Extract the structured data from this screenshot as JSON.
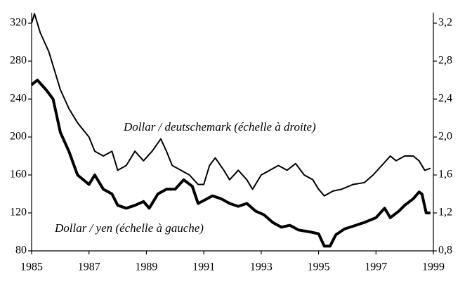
{
  "chart_data": {
    "type": "line",
    "annotations": [
      "Dollar / deutschemark (échelle à droite)",
      "Dollar / yen (échelle à gauche)"
    ],
    "xlim": [
      1985,
      1999
    ],
    "xticks": [
      1985,
      1987,
      1989,
      1991,
      1993,
      1995,
      1997,
      1999
    ],
    "ylim": [
      80,
      340
    ],
    "yticks": [
      80,
      120,
      160,
      200,
      240,
      280,
      320
    ],
    "y2lim": [
      0.8,
      3.4
    ],
    "y2ticks": [
      {
        "value": 0.8,
        "label": "0,8"
      },
      {
        "value": 1.2,
        "label": "1,2"
      },
      {
        "value": 1.6,
        "label": "1,6"
      },
      {
        "value": 2.0,
        "label": "2,0"
      },
      {
        "value": 2.4,
        "label": "2,4"
      },
      {
        "value": 2.8,
        "label": "2,8"
      },
      {
        "value": 3.2,
        "label": "3,2"
      }
    ],
    "series": [
      {
        "name": "Dollar / yen",
        "color": "#000000",
        "x": [
          1985.0,
          1985.2,
          1985.5,
          1985.75,
          1986.0,
          1986.3,
          1986.6,
          1987.0,
          1987.2,
          1987.5,
          1987.8,
          1988.0,
          1988.3,
          1988.6,
          1988.9,
          1989.1,
          1989.4,
          1989.7,
          1990.0,
          1990.3,
          1990.6,
          1990.8,
          1991.0,
          1991.3,
          1991.6,
          1991.9,
          1992.2,
          1992.5,
          1992.8,
          1993.1,
          1993.4,
          1993.7,
          1994.0,
          1994.3,
          1994.7,
          1995.0,
          1995.2,
          1995.4,
          1995.6,
          1995.9,
          1996.3,
          1996.6,
          1997.0,
          1997.3,
          1997.5,
          1997.8,
          1998.0,
          1998.3,
          1998.5,
          1998.6,
          1998.75,
          1998.9
        ],
        "values": [
          255,
          260,
          250,
          240,
          205,
          185,
          160,
          150,
          160,
          145,
          140,
          128,
          125,
          128,
          132,
          125,
          140,
          145,
          145,
          155,
          148,
          130,
          133,
          138,
          135,
          130,
          127,
          130,
          122,
          118,
          110,
          105,
          107,
          102,
          100,
          98,
          85,
          85,
          97,
          103,
          107,
          110,
          115,
          125,
          115,
          122,
          128,
          135,
          142,
          140,
          120,
          120
        ]
      },
      {
        "name": "Dollar / deutschemark",
        "color": "#000000",
        "axis": "y2",
        "x": [
          1985.0,
          1985.1,
          1985.3,
          1985.6,
          1985.8,
          1986.0,
          1986.3,
          1986.6,
          1987.0,
          1987.2,
          1987.5,
          1987.8,
          1988.0,
          1988.3,
          1988.6,
          1988.9,
          1989.2,
          1989.5,
          1989.7,
          1989.9,
          1990.2,
          1990.5,
          1990.8,
          1991.0,
          1991.2,
          1991.4,
          1991.7,
          1991.9,
          1992.2,
          1992.5,
          1992.7,
          1993.0,
          1993.3,
          1993.6,
          1993.9,
          1994.2,
          1994.5,
          1994.8,
          1995.0,
          1995.2,
          1995.5,
          1995.8,
          1996.2,
          1996.6,
          1996.9,
          1997.2,
          1997.5,
          1997.7,
          1998.0,
          1998.3,
          1998.5,
          1998.7,
          1998.9
        ],
        "values": [
          3.2,
          3.3,
          3.1,
          2.9,
          2.7,
          2.5,
          2.3,
          2.15,
          2.0,
          1.85,
          1.8,
          1.85,
          1.65,
          1.7,
          1.85,
          1.75,
          1.85,
          1.98,
          1.85,
          1.7,
          1.65,
          1.6,
          1.5,
          1.5,
          1.7,
          1.78,
          1.65,
          1.55,
          1.65,
          1.55,
          1.45,
          1.6,
          1.65,
          1.7,
          1.65,
          1.72,
          1.6,
          1.55,
          1.45,
          1.38,
          1.43,
          1.45,
          1.5,
          1.52,
          1.6,
          1.7,
          1.8,
          1.75,
          1.8,
          1.8,
          1.75,
          1.65,
          1.67
        ]
      }
    ]
  }
}
